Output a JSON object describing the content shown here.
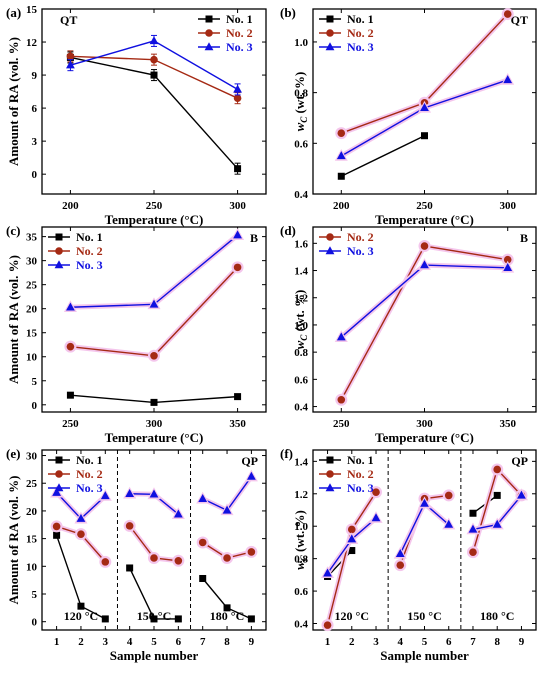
{
  "colors": {
    "no1": "#000000",
    "no2": "#a52a14",
    "no3": "#1010e0",
    "halo": "#f4c6ec"
  },
  "chart_data": [
    {
      "id": "a",
      "type": "line",
      "panel_label": "(a)",
      "tag": "QT",
      "xlabel": "Temperature (°C)",
      "ylabel": "Amount of RA (vol. %)",
      "x_ticks": [
        200,
        250,
        300
      ],
      "xlim": [
        183,
        317
      ],
      "y_ticks": [
        0,
        3,
        6,
        9,
        12,
        15
      ],
      "ylim": [
        -1.8,
        15
      ],
      "legend": "top-right",
      "series": [
        {
          "name": "No. 1",
          "x": [
            200,
            250,
            300
          ],
          "y": [
            10.6,
            9.0,
            0.5
          ],
          "err": [
            0.5,
            0.5,
            0.5
          ],
          "marker": "square",
          "color": "#000000"
        },
        {
          "name": "No. 2",
          "x": [
            200,
            250,
            300
          ],
          "y": [
            10.7,
            10.4,
            6.9
          ],
          "err": [
            0.5,
            0.5,
            0.5
          ],
          "marker": "circle",
          "color": "#a52a14"
        },
        {
          "name": "No. 3",
          "x": [
            200,
            250,
            300
          ],
          "y": [
            9.9,
            12.1,
            7.7
          ],
          "err": [
            0.5,
            0.5,
            0.5
          ],
          "marker": "triangle",
          "color": "#1010e0"
        }
      ]
    },
    {
      "id": "b",
      "type": "line",
      "panel_label": "(b)",
      "tag": "QT",
      "xlabel": "Temperature (°C)",
      "ylabel_main": "w",
      "ylabel_sub": "C",
      "ylabel_rest": " (wt. %)",
      "x_ticks": [
        200,
        250,
        300
      ],
      "xlim": [
        183,
        317
      ],
      "y_ticks": [
        0.4,
        0.6,
        0.8,
        1.0
      ],
      "ylim": [
        0.4,
        1.13
      ],
      "legend": "top-left",
      "series": [
        {
          "name": "No. 1",
          "x": [
            200,
            250
          ],
          "y": [
            0.47,
            0.63
          ],
          "marker": "square",
          "color": "#000000"
        },
        {
          "name": "No. 2",
          "x": [
            200,
            250,
            300
          ],
          "y": [
            0.64,
            0.76,
            1.11
          ],
          "marker": "circle",
          "color": "#a52a14"
        },
        {
          "name": "No. 3",
          "x": [
            200,
            250,
            300
          ],
          "y": [
            0.55,
            0.74,
            0.85
          ],
          "marker": "triangle",
          "color": "#1010e0"
        }
      ]
    },
    {
      "id": "c",
      "type": "line",
      "panel_label": "(c)",
      "tag": "B",
      "xlabel": "Temperature (°C)",
      "ylabel": "Amount of RA (vol. %)",
      "x_ticks": [
        250,
        300,
        350
      ],
      "xlim": [
        233,
        367
      ],
      "y_ticks": [
        0,
        5,
        10,
        15,
        20,
        25,
        30,
        35
      ],
      "ylim": [
        -1.5,
        37
      ],
      "legend": "top-left",
      "series": [
        {
          "name": "No. 1",
          "x": [
            250,
            300,
            350
          ],
          "y": [
            2.0,
            0.5,
            1.7
          ],
          "marker": "square",
          "color": "#000000"
        },
        {
          "name": "No. 2",
          "x": [
            250,
            300,
            350
          ],
          "y": [
            12.1,
            10.2,
            28.6
          ],
          "marker": "circle",
          "color": "#a52a14"
        },
        {
          "name": "No. 3",
          "x": [
            250,
            300,
            350
          ],
          "y": [
            20.3,
            20.9,
            35.3
          ],
          "marker": "triangle",
          "color": "#1010e0"
        }
      ]
    },
    {
      "id": "d",
      "type": "line",
      "panel_label": "(d)",
      "tag": "B",
      "xlabel": "Temperature (°C)",
      "ylabel_main": "w",
      "ylabel_sub": "C",
      "ylabel_rest": " (wt. %)",
      "x_ticks": [
        250,
        300,
        350
      ],
      "xlim": [
        233,
        367
      ],
      "y_ticks": [
        0.4,
        0.6,
        0.8,
        1.0,
        1.2,
        1.4,
        1.6
      ],
      "ylim": [
        0.36,
        1.72
      ],
      "legend": "top-left",
      "series": [
        {
          "name": "No. 2",
          "x": [
            250,
            300,
            350
          ],
          "y": [
            0.45,
            1.58,
            1.48
          ],
          "marker": "circle",
          "color": "#a52a14"
        },
        {
          "name": "No. 3",
          "x": [
            250,
            300,
            350
          ],
          "y": [
            0.91,
            1.44,
            1.42
          ],
          "marker": "triangle",
          "color": "#1010e0"
        }
      ]
    },
    {
      "id": "e",
      "type": "line",
      "panel_label": "(e)",
      "tag": "QP",
      "xlabel": "Sample number",
      "ylabel": "Amount of RA (vol. %)",
      "x_ticks": [
        1,
        2,
        3,
        4,
        5,
        6,
        7,
        8,
        9
      ],
      "xlim": [
        0.4,
        9.6
      ],
      "y_ticks": [
        0,
        5,
        10,
        15,
        20,
        25,
        30
      ],
      "ylim": [
        -1.5,
        31
      ],
      "dividers": [
        3.5,
        6.5
      ],
      "groups": [
        {
          "label": "120 °C",
          "x": 2
        },
        {
          "label": "150 °C",
          "x": 5
        },
        {
          "label": "180 °C",
          "x": 8
        }
      ],
      "legend": "top-left",
      "series": [
        {
          "name": "No. 1",
          "segments": [
            {
              "x": [
                1,
                2,
                3
              ],
              "y": [
                15.6,
                2.8,
                0.5
              ]
            },
            {
              "x": [
                4,
                5,
                6
              ],
              "y": [
                9.7,
                0.5,
                0.5
              ]
            },
            {
              "x": [
                7,
                8,
                9
              ],
              "y": [
                7.8,
                2.5,
                0.5
              ]
            }
          ],
          "marker": "square",
          "color": "#000000"
        },
        {
          "name": "No. 2",
          "segments": [
            {
              "x": [
                1,
                2,
                3
              ],
              "y": [
                17.2,
                15.8,
                10.8
              ]
            },
            {
              "x": [
                4,
                5,
                6
              ],
              "y": [
                17.3,
                11.5,
                11.0
              ]
            },
            {
              "x": [
                7,
                8,
                9
              ],
              "y": [
                14.3,
                11.5,
                12.6
              ]
            }
          ],
          "marker": "circle",
          "color": "#a52a14"
        },
        {
          "name": "No. 3",
          "segments": [
            {
              "x": [
                1,
                2,
                3
              ],
              "y": [
                23.3,
                18.6,
                22.7
              ]
            },
            {
              "x": [
                4,
                5,
                6
              ],
              "y": [
                23.1,
                23.0,
                19.4
              ]
            },
            {
              "x": [
                7,
                8,
                9
              ],
              "y": [
                22.2,
                20.1,
                26.2
              ]
            }
          ],
          "marker": "triangle",
          "color": "#1010e0"
        }
      ]
    },
    {
      "id": "f",
      "type": "line",
      "panel_label": "(f)",
      "tag": "QP",
      "xlabel": "Sample number",
      "ylabel_main": "w",
      "ylabel_sub": "C",
      "ylabel_rest": " (wt. %)",
      "x_ticks": [
        1,
        2,
        3,
        4,
        5,
        6,
        7,
        8,
        9
      ],
      "xlim": [
        0.4,
        9.6
      ],
      "y_ticks": [
        0.4,
        0.6,
        0.8,
        1.0,
        1.2,
        1.4
      ],
      "ylim": [
        0.36,
        1.47
      ],
      "dividers": [
        3.5,
        6.5
      ],
      "groups": [
        {
          "label": "120 °C",
          "x": 2
        },
        {
          "label": "150 °C",
          "x": 5
        },
        {
          "label": "180 °C",
          "x": 8
        }
      ],
      "legend": "top-left",
      "series": [
        {
          "name": "No. 1",
          "segments": [
            {
              "x": [
                1,
                2
              ],
              "y": [
                0.69,
                0.85
              ]
            },
            {
              "x": [
                7,
                8
              ],
              "y": [
                1.08,
                1.19
              ]
            }
          ],
          "marker": "square",
          "color": "#000000"
        },
        {
          "name": "No. 2",
          "segments": [
            {
              "x": [
                1,
                2,
                3
              ],
              "y": [
                0.39,
                0.98,
                1.21
              ]
            },
            {
              "x": [
                4,
                5,
                6
              ],
              "y": [
                0.76,
                1.17,
                1.19
              ]
            },
            {
              "x": [
                7,
                8,
                9
              ],
              "y": [
                0.84,
                1.35,
                1.19
              ]
            }
          ],
          "marker": "circle",
          "color": "#a52a14"
        },
        {
          "name": "No. 3",
          "segments": [
            {
              "x": [
                1,
                2,
                3
              ],
              "y": [
                0.71,
                0.92,
                1.05
              ]
            },
            {
              "x": [
                4,
                5,
                6
              ],
              "y": [
                0.83,
                1.14,
                1.01
              ]
            },
            {
              "x": [
                7,
                8,
                9
              ],
              "y": [
                0.98,
                1.01,
                1.19
              ]
            }
          ],
          "marker": "triangle",
          "color": "#1010e0"
        }
      ]
    }
  ]
}
